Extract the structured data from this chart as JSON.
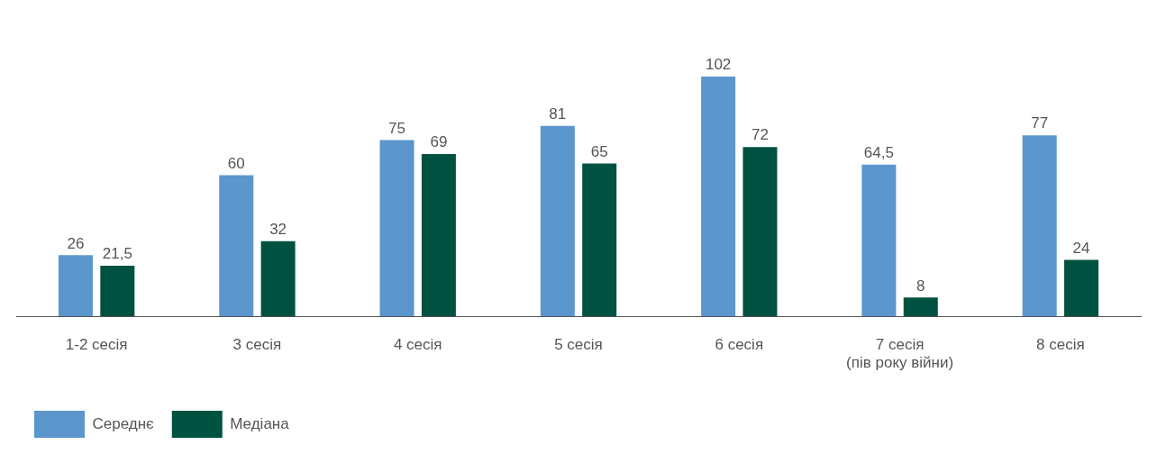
{
  "chart_data": {
    "type": "bar",
    "categories": [
      "1-2 сесія",
      "3 сесія",
      "4 сесія",
      "5 сесія",
      "6 сесія",
      "7 сесія\n(пів року війни)",
      "8 сесія"
    ],
    "series": [
      {
        "name": "Середнє",
        "color": "#5b96cc",
        "values": [
          26,
          60,
          75,
          81,
          102,
          64.5,
          77
        ],
        "value_labels": [
          "26",
          "60",
          "75",
          "81",
          "102",
          "64,5",
          "77"
        ]
      },
      {
        "name": "Медіана",
        "color": "#005240",
        "values": [
          21.5,
          32,
          69,
          65,
          72,
          8,
          24
        ],
        "value_labels": [
          "21,5",
          "32",
          "69",
          "65",
          "72",
          "8",
          "24"
        ]
      }
    ],
    "legend": "bottom left",
    "grid": false,
    "tick_labels": "x"
  }
}
